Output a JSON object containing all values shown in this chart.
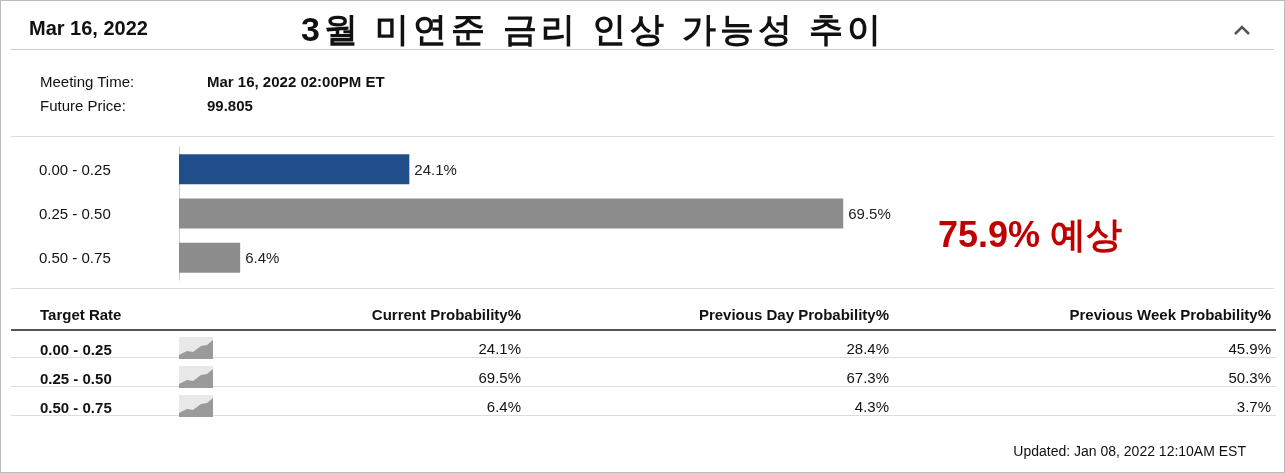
{
  "chart_data": [
    {
      "type": "bar",
      "orientation": "horizontal",
      "title": "3월 미연준 금리 인상 가능성 추이",
      "categories": [
        "0.00 - 0.25",
        "0.25 - 0.50",
        "0.50 - 0.75"
      ],
      "values": [
        24.1,
        69.5,
        6.4
      ],
      "value_labels": [
        "24.1%",
        "69.5%",
        "6.4%"
      ],
      "colors": [
        "#1f4e8a",
        "#8c8c8c",
        "#8c8c8c"
      ],
      "annotations": [
        "Mar 16, 2022",
        "Meeting Time:",
        "Mar 16, 2022 02:00PM ET",
        "Future Price:",
        "99.805",
        "75.9%  예상",
        "Updated: Jan 08, 2022 12:10AM EST"
      ]
    },
    {
      "type": "other",
      "xlabel": "Target Rate",
      "categories": [
        "0.00 - 0.25",
        "0.25 - 0.50",
        "0.50 - 0.75"
      ],
      "series": [
        {
          "name": "Current Probability%",
          "values": [
            24.1,
            69.5,
            6.4
          ],
          "value_labels": [
            "24.1%",
            "69.5%",
            "6.4%"
          ]
        },
        {
          "name": "Previous Day Probability%",
          "values": [
            28.4,
            67.3,
            4.3
          ],
          "value_labels": [
            "28.4%",
            "67.3%",
            "4.3%"
          ]
        },
        {
          "name": "Previous Week Probability%",
          "values": [
            45.9,
            50.3,
            3.7
          ],
          "value_labels": [
            "45.9%",
            "50.3%",
            "3.7%"
          ]
        }
      ]
    }
  ]
}
